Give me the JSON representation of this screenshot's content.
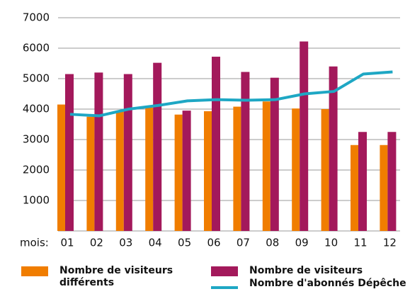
{
  "chart_data": {
    "type": "bar",
    "x_label": "mois:",
    "categories": [
      "01",
      "02",
      "03",
      "04",
      "05",
      "06",
      "07",
      "08",
      "09",
      "10",
      "11",
      "12"
    ],
    "series": [
      {
        "name": "Nombre de visiteurs différents",
        "color": "#f07d00",
        "type": "bar",
        "values": [
          4150,
          3750,
          3950,
          4050,
          3820,
          3930,
          4080,
          4250,
          4020,
          4000,
          2820,
          2820
        ]
      },
      {
        "name": "Nombre de visiteurs",
        "color": "#a3195b",
        "type": "bar",
        "values": [
          5150,
          5200,
          5150,
          5520,
          3950,
          5720,
          5220,
          5030,
          6220,
          5400,
          3250,
          3250
        ]
      },
      {
        "name": "Nombre d'abonnés Dépêche",
        "color": "#1ea7c4",
        "type": "line",
        "values": [
          3830,
          3780,
          4000,
          4120,
          4270,
          4310,
          4290,
          4310,
          4500,
          4580,
          5150,
          5220
        ]
      }
    ],
    "ylim": [
      0,
      7000
    ],
    "yticks": [
      1000,
      2000,
      3000,
      4000,
      5000,
      6000,
      7000
    ],
    "grid": true
  }
}
